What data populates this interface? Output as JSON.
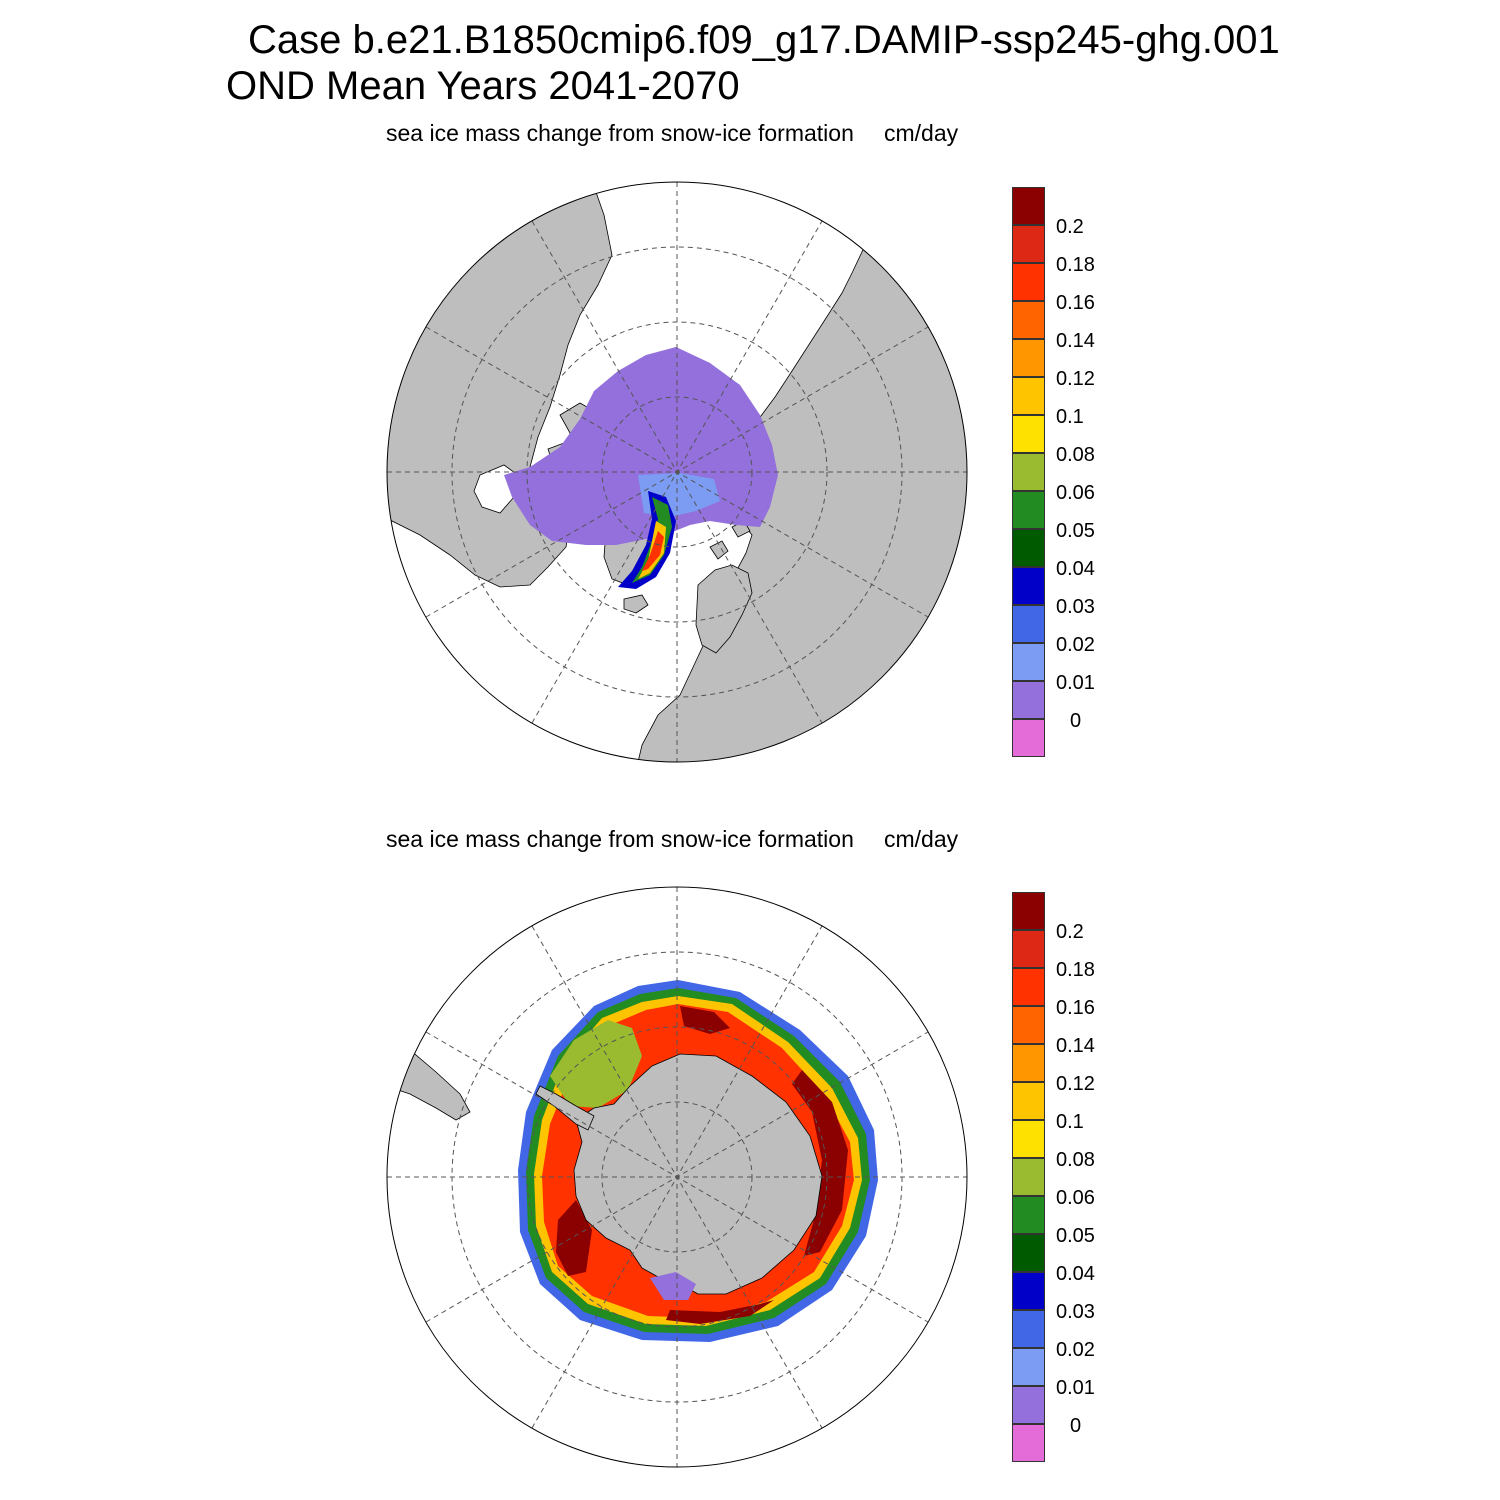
{
  "figure": {
    "title_line1": "Case b.e21.B1850cmip6.f09_g17.DAMIP-ssp245-ghg.001",
    "title_line2": "OND Mean   Years 2041-2070"
  },
  "panels": [
    {
      "hemisphere": "north",
      "label": "sea ice mass change from snow-ice formation",
      "units": "cm/day"
    },
    {
      "hemisphere": "south",
      "label": "sea ice mass change from snow-ice formation",
      "units": "cm/day"
    }
  ],
  "colorbar": {
    "levels": [
      "0",
      "0.01",
      "0.02",
      "0.03",
      "0.04",
      "0.05",
      "0.06",
      "0.08",
      "0.1",
      "0.12",
      "0.14",
      "0.16",
      "0.18",
      "0.2"
    ],
    "colors": [
      "#e46cd8",
      "#9370db",
      "#7b9cf2",
      "#4267e6",
      "#0000c8",
      "#005a00",
      "#228b22",
      "#9aba30",
      "#ffe100",
      "#ffc400",
      "#ff9600",
      "#ff6400",
      "#ff3200",
      "#dc2814",
      "#8b0000"
    ]
  },
  "colors": {
    "land": "#bebebe",
    "ocean": "#ffffff",
    "grid": "#555555"
  }
}
